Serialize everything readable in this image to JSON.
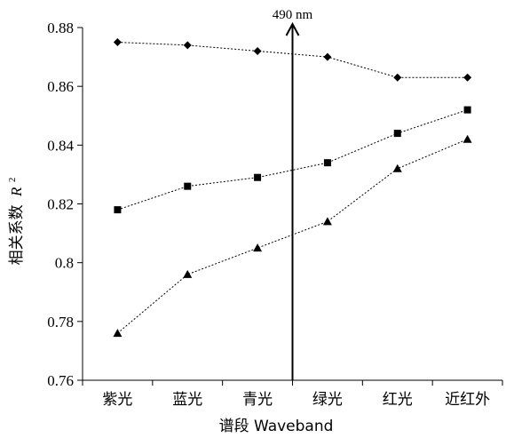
{
  "chart_data": {
    "type": "line",
    "title": "",
    "xlabel": "谱段 Waveband",
    "ylabel": "相关系数",
    "ylabel_symbol": "R",
    "ylabel_sup": "2",
    "categories": [
      "紫光",
      "蓝光",
      "青光",
      "绿光",
      "红光",
      "近红外"
    ],
    "ylim": [
      0.76,
      0.88
    ],
    "yticks": [
      "0.76",
      "0.78",
      "0.8",
      "0.82",
      "0.84",
      "0.86",
      "0.88"
    ],
    "grid": false,
    "legend": "none",
    "series": [
      {
        "marker": "diamond",
        "values": [
          0.875,
          0.874,
          0.872,
          0.87,
          0.863,
          0.863
        ]
      },
      {
        "marker": "square",
        "values": [
          0.818,
          0.826,
          0.829,
          0.834,
          0.844,
          0.852
        ]
      },
      {
        "marker": "triangle",
        "values": [
          0.776,
          0.796,
          0.805,
          0.814,
          0.832,
          0.842
        ]
      }
    ],
    "annotation": {
      "text": "490 nm",
      "between": [
        "青光",
        "绿光"
      ]
    },
    "colors": {
      "line": "#000000",
      "marker": "#000000"
    }
  }
}
